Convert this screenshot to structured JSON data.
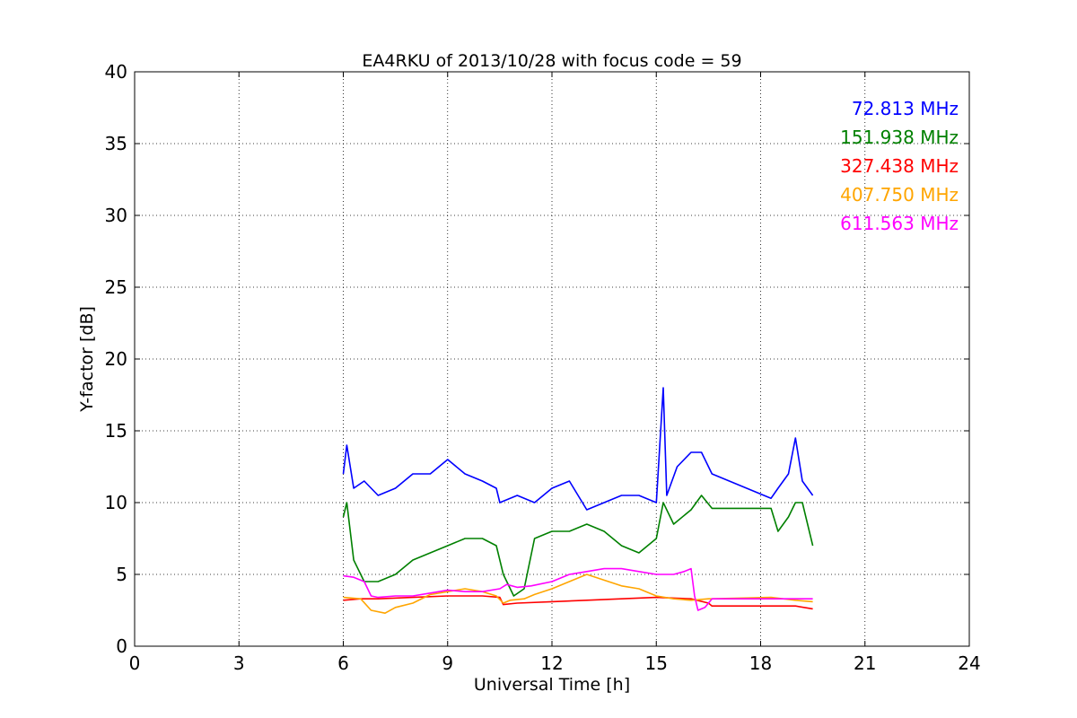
{
  "chart_data": {
    "type": "line",
    "title": "EA4RKU of 2013/10/28 with focus code = 59",
    "xlabel": "Universal Time [h]",
    "ylabel": "Y-factor [dB]",
    "xlim": [
      0,
      24
    ],
    "ylim": [
      0,
      40
    ],
    "xticks": [
      0,
      3,
      6,
      9,
      12,
      15,
      18,
      21,
      24
    ],
    "yticks": [
      0,
      5,
      10,
      15,
      20,
      25,
      30,
      35,
      40
    ],
    "grid": true,
    "legend_position": "top-right",
    "series": [
      {
        "name": "72.813 MHz",
        "color": "#0000ff",
        "x": [
          6.0,
          6.1,
          6.3,
          6.6,
          7.0,
          7.5,
          8.0,
          8.5,
          9.0,
          9.5,
          10.0,
          10.4,
          10.5,
          11.0,
          11.5,
          12.0,
          12.5,
          13.0,
          13.5,
          14.0,
          14.5,
          15.0,
          15.2,
          15.3,
          15.6,
          16.0,
          16.3,
          16.6,
          18.3,
          18.5,
          18.8,
          19.0,
          19.2,
          19.5
        ],
        "y": [
          12.0,
          14.0,
          11.0,
          11.5,
          10.5,
          11.0,
          12.0,
          12.0,
          13.0,
          12.0,
          11.5,
          11.0,
          10.0,
          10.5,
          10.0,
          11.0,
          11.5,
          9.5,
          10.0,
          10.5,
          10.5,
          10.0,
          18.0,
          10.5,
          12.5,
          13.5,
          13.5,
          12.0,
          10.3,
          11.0,
          12.0,
          14.5,
          11.5,
          10.5
        ]
      },
      {
        "name": "151.938 MHz",
        "color": "#008000",
        "x": [
          6.0,
          6.1,
          6.3,
          6.6,
          7.0,
          7.5,
          8.0,
          8.5,
          9.0,
          9.5,
          10.0,
          10.4,
          10.6,
          10.9,
          11.2,
          11.5,
          12.0,
          12.5,
          13.0,
          13.5,
          14.0,
          14.5,
          15.0,
          15.2,
          15.5,
          16.0,
          16.3,
          16.6,
          18.3,
          18.5,
          18.8,
          19.0,
          19.2,
          19.5
        ],
        "y": [
          9.0,
          10.0,
          6.0,
          4.5,
          4.5,
          5.0,
          6.0,
          6.5,
          7.0,
          7.5,
          7.5,
          7.0,
          5.0,
          3.5,
          4.0,
          7.5,
          8.0,
          8.0,
          8.5,
          8.0,
          7.0,
          6.5,
          7.5,
          10.0,
          8.5,
          9.5,
          10.5,
          9.6,
          9.6,
          8.0,
          9.0,
          10.0,
          10.0,
          7.0
        ]
      },
      {
        "name": "327.438 MHz",
        "color": "#ff0000",
        "x": [
          6.0,
          6.5,
          7.0,
          8.0,
          9.0,
          10.0,
          10.5,
          10.6,
          11.0,
          12.0,
          13.0,
          14.0,
          15.0,
          16.0,
          16.5,
          16.6,
          18.3,
          19.0,
          19.5
        ],
        "y": [
          3.2,
          3.3,
          3.3,
          3.4,
          3.5,
          3.5,
          3.4,
          2.9,
          3.0,
          3.1,
          3.2,
          3.3,
          3.4,
          3.3,
          3.0,
          2.8,
          2.8,
          2.8,
          2.6
        ]
      },
      {
        "name": "407.750 MHz",
        "color": "#ffa500",
        "x": [
          6.0,
          6.5,
          6.8,
          7.2,
          7.5,
          8.0,
          8.5,
          9.0,
          9.5,
          10.0,
          10.4,
          10.6,
          10.8,
          11.2,
          11.5,
          12.0,
          12.5,
          13.0,
          13.5,
          14.0,
          14.5,
          15.0,
          15.5,
          16.0,
          16.5,
          16.6,
          18.3,
          19.0,
          19.5
        ],
        "y": [
          3.4,
          3.3,
          2.5,
          2.3,
          2.7,
          3.0,
          3.6,
          3.8,
          4.0,
          3.8,
          3.5,
          3.0,
          3.2,
          3.3,
          3.6,
          4.0,
          4.5,
          5.0,
          4.6,
          4.2,
          4.0,
          3.5,
          3.3,
          3.2,
          3.3,
          3.3,
          3.4,
          3.2,
          3.1
        ]
      },
      {
        "name": "611.563 MHz",
        "color": "#ff00ff",
        "x": [
          6.0,
          6.3,
          6.6,
          6.8,
          7.0,
          7.5,
          8.0,
          8.5,
          9.0,
          9.5,
          10.0,
          10.5,
          10.7,
          11.0,
          11.4,
          12.0,
          12.5,
          13.0,
          13.5,
          14.0,
          14.5,
          15.0,
          15.5,
          15.8,
          16.0,
          16.1,
          16.2,
          16.4,
          16.6,
          18.3,
          19.0,
          19.5
        ],
        "y": [
          4.9,
          4.8,
          4.5,
          3.5,
          3.4,
          3.5,
          3.5,
          3.7,
          3.9,
          3.8,
          3.8,
          4.0,
          4.3,
          4.1,
          4.2,
          4.5,
          5.0,
          5.2,
          5.4,
          5.4,
          5.2,
          5.0,
          5.0,
          5.2,
          5.4,
          3.5,
          2.5,
          2.7,
          3.3,
          3.3,
          3.3,
          3.3
        ]
      }
    ]
  }
}
